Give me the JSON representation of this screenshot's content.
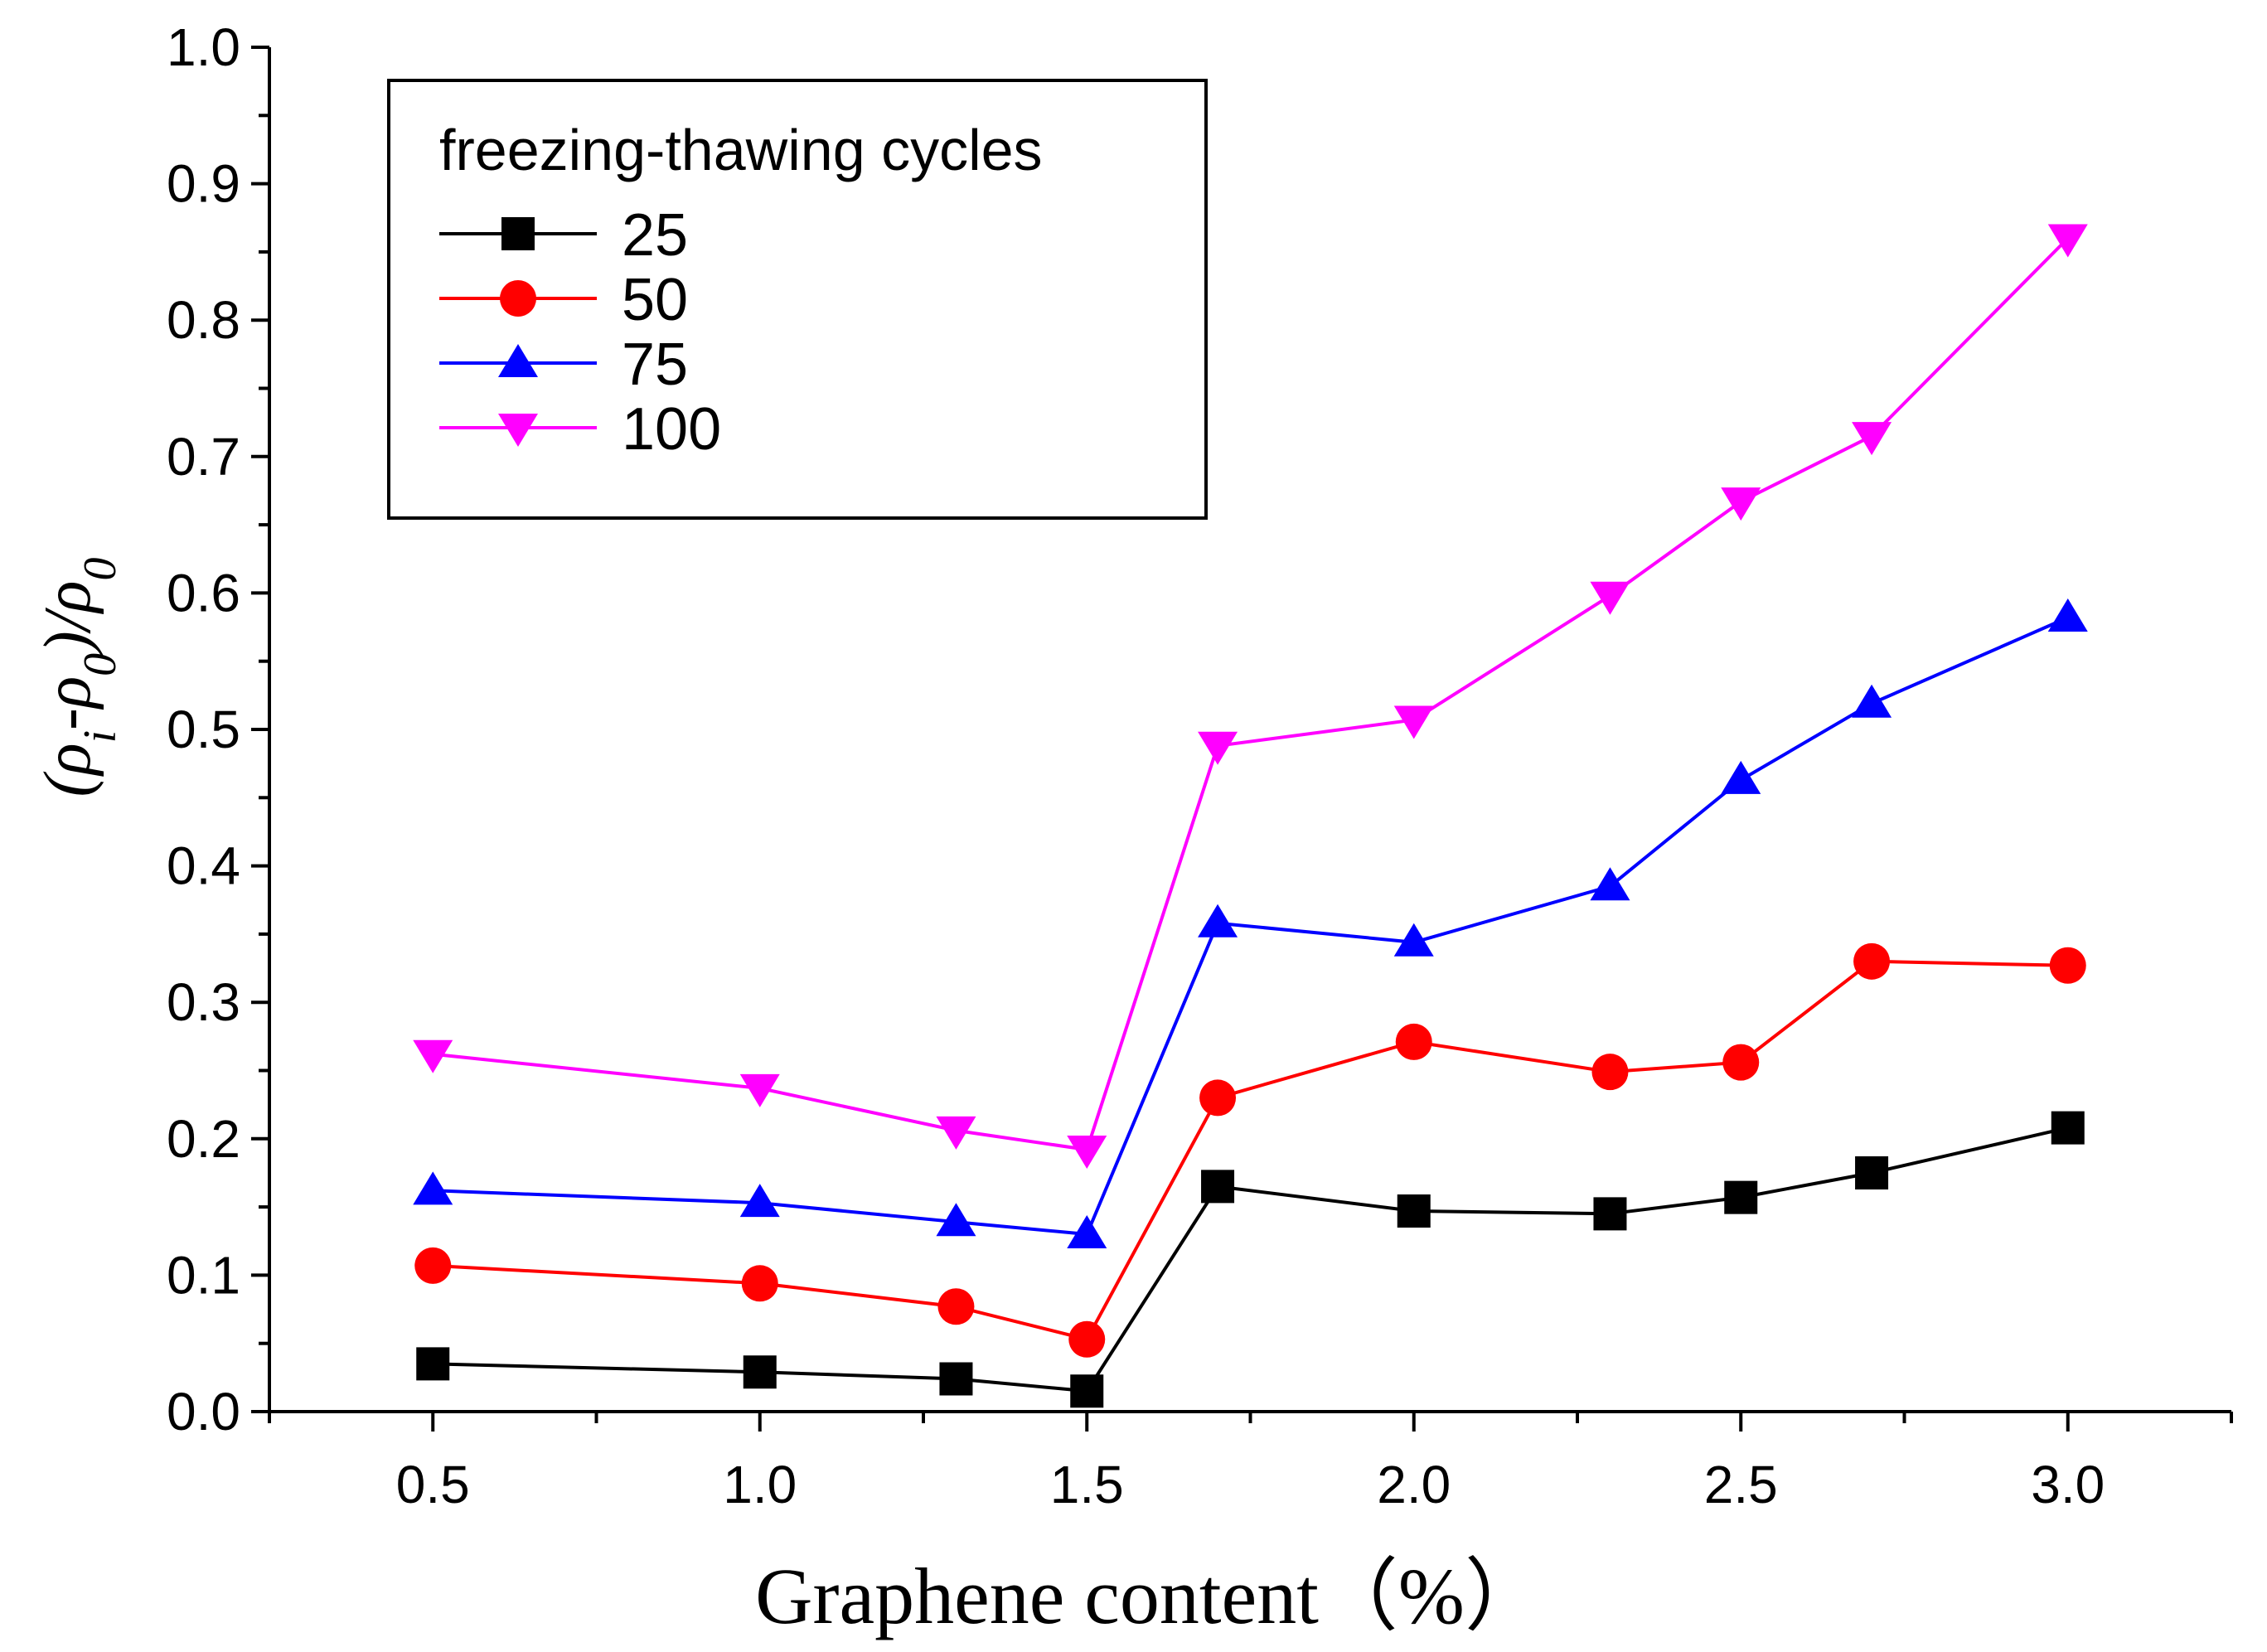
{
  "chart_data": {
    "type": "line",
    "title": "",
    "xlabel": "Graphene content（%）",
    "ylabel": "(ρi-ρ0)/ρ0",
    "y_label_parts": {
      "open": "(",
      "rho_i": "ρ",
      "sub_i": "i",
      "minus": "-",
      "rho_0": "ρ",
      "sub_0": "0",
      "close_div": ")/",
      "rho_den": "ρ",
      "sub_den": "0"
    },
    "xlim": [
      0.25,
      3.25
    ],
    "ylim": [
      0.0,
      1.0
    ],
    "x_ticks": [
      0.5,
      1.0,
      1.5,
      2.0,
      2.5,
      3.0
    ],
    "x_tick_labels": [
      "0.5",
      "1.0",
      "1.5",
      "2.0",
      "2.5",
      "3.0"
    ],
    "y_ticks": [
      0.0,
      0.1,
      0.2,
      0.3,
      0.4,
      0.5,
      0.6,
      0.7,
      0.8,
      0.9,
      1.0
    ],
    "y_tick_labels": [
      "0.0",
      "0.1",
      "0.2",
      "0.3",
      "0.4",
      "0.5",
      "0.6",
      "0.7",
      "0.8",
      "0.9",
      "1.0"
    ],
    "legend": {
      "title": "freezing-thawing cycles",
      "position": "top-left"
    },
    "x": [
      0.5,
      1.0,
      1.3,
      1.5,
      1.7,
      2.0,
      2.3,
      2.5,
      2.7,
      3.0
    ],
    "series": [
      {
        "name": "25",
        "color": "#000000",
        "marker": "square",
        "values": [
          0.035,
          0.029,
          0.024,
          0.015,
          0.165,
          0.147,
          0.145,
          0.157,
          0.175,
          0.208
        ]
      },
      {
        "name": "50",
        "color": "#ff0000",
        "marker": "circle",
        "values": [
          0.107,
          0.094,
          0.077,
          0.053,
          0.23,
          0.271,
          0.249,
          0.256,
          0.33,
          0.327
        ]
      },
      {
        "name": "75",
        "color": "#0000ff",
        "marker": "triangle-up",
        "values": [
          0.162,
          0.153,
          0.139,
          0.13,
          0.358,
          0.344,
          0.385,
          0.463,
          0.519,
          0.582
        ]
      },
      {
        "name": "100",
        "color": "#ff00ff",
        "marker": "triangle-down",
        "values": [
          0.262,
          0.237,
          0.206,
          0.192,
          0.488,
          0.507,
          0.598,
          0.667,
          0.715,
          0.86
        ]
      }
    ]
  }
}
